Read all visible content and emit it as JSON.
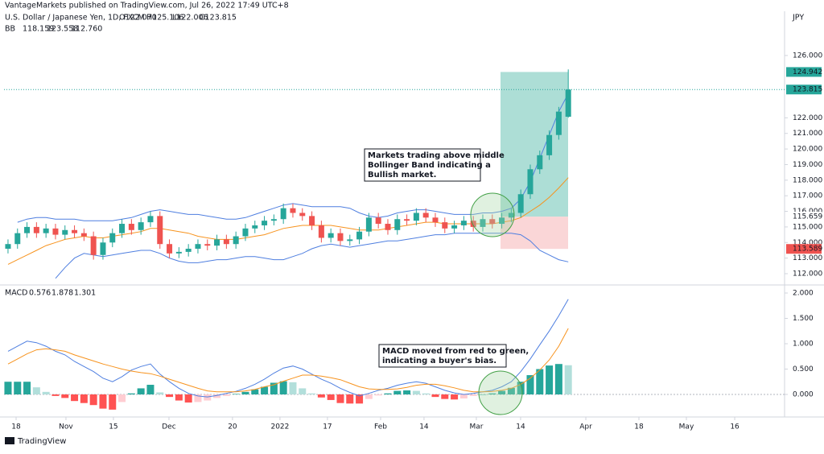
{
  "header": {
    "publisher": "VantageMarkets published on TradingView.com, Jul 26, 2022 17:49 UTC+8",
    "symbol": "U.S. Dollar / Japanese Yen, 1D, FXCM",
    "ohlc": [
      "O122.070",
      "H125.106",
      "L122.006",
      "C123.815"
    ],
    "bb_label": "BB",
    "bb_values": [
      "118.159",
      "123.558",
      "112.760"
    ],
    "macd_label": "MACD",
    "macd_values": [
      "0.576",
      "1.878",
      "1.301"
    ],
    "currency": "JPY",
    "footer": "TradingView"
  },
  "annotations": [
    {
      "lines": [
        "Markets trading above middle",
        "Bollinger Band indicating a",
        "Bullish market."
      ]
    },
    {
      "lines": [
        "MACD moved from red to green,",
        "indicating a buyer's bias."
      ]
    }
  ],
  "chart_data": [
    {
      "type": "candlestick",
      "up_color": "#26a69a",
      "down_color": "#ef5350",
      "open": [
        113.6,
        113.9,
        114.6,
        115.0,
        114.6,
        114.9,
        114.5,
        114.8,
        114.6,
        114.4,
        113.2,
        114.0,
        114.6,
        115.2,
        114.8,
        115.3,
        115.7,
        113.9,
        113.3,
        113.4,
        113.6,
        113.9,
        113.8,
        114.2,
        113.9,
        114.4,
        114.9,
        115.1,
        115.4,
        115.5,
        116.2,
        115.9,
        115.7,
        115.1,
        114.3,
        114.6,
        114.1,
        114.2,
        114.7,
        115.6,
        115.2,
        114.8,
        115.5,
        115.4,
        115.9,
        115.6,
        115.3,
        114.9,
        115.1,
        115.4,
        115.0,
        115.5,
        115.2,
        115.6,
        115.9,
        117.1,
        118.7,
        119.6,
        120.9,
        122.07
      ],
      "high": [
        114.2,
        114.9,
        115.3,
        115.3,
        115.2,
        115.2,
        115.1,
        115.1,
        114.9,
        114.7,
        114.3,
        114.9,
        115.5,
        115.5,
        115.6,
        116.0,
        116.0,
        114.2,
        113.7,
        113.9,
        114.2,
        114.2,
        114.5,
        114.5,
        114.7,
        115.2,
        115.4,
        115.7,
        115.8,
        116.5,
        116.5,
        116.2,
        116.0,
        115.4,
        114.9,
        114.9,
        114.5,
        115.0,
        115.9,
        115.9,
        115.5,
        115.8,
        115.8,
        116.2,
        116.2,
        115.9,
        115.6,
        115.4,
        115.7,
        115.7,
        115.8,
        115.8,
        115.9,
        116.2,
        117.4,
        119.0,
        119.9,
        121.2,
        122.7,
        125.106
      ],
      "low": [
        113.3,
        113.6,
        114.3,
        114.3,
        114.3,
        114.2,
        114.2,
        114.3,
        114.1,
        112.9,
        112.9,
        113.7,
        114.3,
        114.5,
        114.5,
        115.0,
        113.6,
        113.0,
        113.0,
        113.1,
        113.3,
        113.5,
        113.5,
        113.6,
        113.6,
        114.1,
        114.6,
        114.8,
        115.1,
        115.2,
        115.6,
        115.4,
        114.8,
        114.0,
        114.0,
        113.8,
        113.8,
        113.9,
        114.4,
        114.9,
        114.5,
        114.5,
        115.1,
        115.1,
        115.3,
        115.0,
        114.6,
        114.6,
        114.8,
        114.7,
        114.7,
        114.9,
        114.9,
        115.3,
        115.6,
        116.8,
        118.4,
        119.3,
        120.6,
        122.006
      ],
      "close": [
        113.9,
        114.6,
        115.0,
        114.6,
        114.9,
        114.5,
        114.8,
        114.6,
        114.4,
        113.2,
        114.0,
        114.6,
        115.2,
        114.8,
        115.3,
        115.7,
        113.9,
        113.3,
        113.4,
        113.6,
        113.9,
        113.8,
        114.2,
        113.9,
        114.4,
        114.9,
        115.1,
        115.4,
        115.5,
        116.2,
        115.9,
        115.7,
        115.1,
        114.3,
        114.6,
        114.1,
        114.2,
        114.7,
        115.6,
        115.2,
        114.8,
        115.5,
        115.4,
        115.9,
        115.6,
        115.3,
        114.9,
        115.1,
        115.4,
        115.0,
        115.5,
        115.2,
        115.6,
        115.9,
        117.1,
        118.7,
        119.6,
        120.9,
        122.4,
        123.815
      ],
      "bands": [
        {
          "color": "#f7931e",
          "values": [
            112.6,
            112.9,
            113.2,
            113.5,
            113.8,
            114.0,
            114.2,
            114.3,
            114.4,
            114.3,
            114.3,
            114.4,
            114.5,
            114.6,
            114.7,
            114.9,
            114.9,
            114.8,
            114.7,
            114.6,
            114.4,
            114.3,
            114.2,
            114.2,
            114.2,
            114.3,
            114.4,
            114.5,
            114.7,
            114.9,
            115.0,
            115.1,
            115.1,
            115.1,
            115.1,
            115.0,
            114.9,
            114.8,
            114.8,
            114.8,
            114.9,
            115.0,
            115.1,
            115.2,
            115.3,
            115.3,
            115.2,
            115.2,
            115.2,
            115.2,
            115.2,
            115.2,
            115.3,
            115.4,
            115.6,
            116.0,
            116.4,
            116.9,
            117.5,
            118.159
          ]
        },
        {
          "color": "#4f7fe0",
          "values": [
            null,
            115.3,
            115.5,
            115.6,
            115.6,
            115.5,
            115.5,
            115.5,
            115.4,
            115.4,
            115.4,
            115.4,
            115.5,
            115.6,
            115.8,
            116.0,
            116.1,
            116.0,
            115.9,
            115.8,
            115.8,
            115.7,
            115.6,
            115.5,
            115.5,
            115.6,
            115.8,
            116.0,
            116.2,
            116.4,
            116.5,
            116.4,
            116.3,
            116.3,
            116.3,
            116.3,
            116.2,
            115.9,
            115.7,
            115.6,
            115.7,
            115.9,
            116.0,
            116.1,
            116.1,
            116.0,
            115.9,
            115.8,
            115.8,
            115.8,
            115.9,
            115.9,
            116.0,
            116.2,
            116.8,
            117.9,
            119.4,
            120.9,
            122.4,
            123.558
          ]
        },
        {
          "color": "#4f7fe0",
          "values": [
            null,
            null,
            null,
            null,
            null,
            111.7,
            112.4,
            113.0,
            113.3,
            113.2,
            113.1,
            113.2,
            113.3,
            113.4,
            113.5,
            113.5,
            113.3,
            113.0,
            112.8,
            112.7,
            112.7,
            112.8,
            112.9,
            112.9,
            113.0,
            113.1,
            113.1,
            113.0,
            112.9,
            112.9,
            113.1,
            113.3,
            113.6,
            113.8,
            113.9,
            113.8,
            113.7,
            113.8,
            113.9,
            114.0,
            114.1,
            114.1,
            114.2,
            114.3,
            114.4,
            114.5,
            114.5,
            114.6,
            114.6,
            114.6,
            114.6,
            114.6,
            114.6,
            114.6,
            114.5,
            114.1,
            113.5,
            113.2,
            112.9,
            112.76
          ]
        }
      ],
      "price_tags": [
        {
          "value": 124.942,
          "label": "124.942",
          "color": "#26a69a",
          "text_color": "#ffffff"
        },
        {
          "value": 123.815,
          "label": "123.815",
          "color": "#26a69a",
          "text_color": "#ffffff"
        },
        {
          "value": 115.659,
          "label": "115.659",
          "color": "#ffffff",
          "text_color": "#131722"
        },
        {
          "value": 113.589,
          "label": "113.589",
          "color": "#ef5350",
          "text_color": "#ffffff"
        }
      ],
      "target_color": "#9fd8cf",
      "stop_color": "#f9cfd0",
      "xlim": [
        -0.42,
        81.78
      ],
      "ylim": [
        111.38,
        128.63
      ],
      "yticks": [
        {
          "value": 112,
          "label": "112.000"
        },
        {
          "value": 113,
          "label": "113.000"
        },
        {
          "value": 114,
          "label": "114.000"
        },
        {
          "value": 115,
          "label": "115.000"
        },
        {
          "value": 116,
          "label": "116.000"
        },
        {
          "value": 117,
          "label": "117.000"
        },
        {
          "value": 118,
          "label": "118.000"
        },
        {
          "value": 119,
          "label": "119.000"
        },
        {
          "value": 120,
          "label": "120.000"
        },
        {
          "value": 121,
          "label": "121.000"
        },
        {
          "value": 122,
          "label": "122.000"
        },
        {
          "value": 126,
          "label": "126.000"
        }
      ]
    },
    {
      "type": "macd",
      "histogram_colors": [
        "#26a69a",
        "#b2dfdb",
        "#ff5252",
        "#ffcdd2"
      ],
      "histogram": [
        0.25,
        0.25,
        0.25,
        0.14,
        0.05,
        -0.03,
        -0.07,
        -0.13,
        -0.17,
        -0.21,
        -0.28,
        -0.3,
        -0.15,
        0.02,
        0.12,
        0.19,
        0.04,
        -0.05,
        -0.12,
        -0.16,
        -0.15,
        -0.12,
        -0.07,
        -0.03,
        0.01,
        0.05,
        0.1,
        0.15,
        0.23,
        0.26,
        0.24,
        0.12,
        0.02,
        -0.06,
        -0.11,
        -0.17,
        -0.18,
        -0.18,
        -0.09,
        -0.02,
        0.02,
        0.07,
        0.08,
        0.07,
        0.02,
        -0.05,
        -0.09,
        -0.1,
        -0.08,
        -0.03,
        0.0,
        0.02,
        0.07,
        0.13,
        0.25,
        0.38,
        0.5,
        0.57,
        0.6,
        0.576
      ],
      "series": [
        {
          "color": "#4f7fe0",
          "values": [
            0.85,
            0.95,
            1.05,
            1.02,
            0.95,
            0.85,
            0.78,
            0.65,
            0.55,
            0.45,
            0.32,
            0.25,
            0.35,
            0.48,
            0.55,
            0.6,
            0.4,
            0.25,
            0.12,
            0.02,
            -0.03,
            -0.05,
            -0.02,
            0.02,
            0.06,
            0.12,
            0.2,
            0.3,
            0.42,
            0.52,
            0.56,
            0.5,
            0.4,
            0.3,
            0.22,
            0.12,
            0.04,
            -0.03,
            0.02,
            0.08,
            0.12,
            0.18,
            0.22,
            0.25,
            0.22,
            0.15,
            0.08,
            0.03,
            0.0,
            0.02,
            0.05,
            0.08,
            0.15,
            0.25,
            0.45,
            0.7,
            0.98,
            1.25,
            1.55,
            1.878
          ]
        },
        {
          "color": "#f7931e",
          "values": [
            0.6,
            0.7,
            0.8,
            0.88,
            0.9,
            0.88,
            0.85,
            0.78,
            0.72,
            0.66,
            0.6,
            0.55,
            0.5,
            0.46,
            0.43,
            0.41,
            0.36,
            0.3,
            0.24,
            0.18,
            0.12,
            0.07,
            0.05,
            0.05,
            0.05,
            0.07,
            0.1,
            0.15,
            0.19,
            0.26,
            0.32,
            0.38,
            0.38,
            0.36,
            0.33,
            0.29,
            0.22,
            0.15,
            0.11,
            0.1,
            0.1,
            0.11,
            0.14,
            0.18,
            0.2,
            0.2,
            0.17,
            0.13,
            0.08,
            0.05,
            0.05,
            0.06,
            0.08,
            0.12,
            0.2,
            0.32,
            0.48,
            0.68,
            0.95,
            1.301
          ]
        }
      ],
      "xlim": [
        -0.42,
        81.78
      ],
      "ylim": [
        -0.413,
        2.127
      ],
      "yticks": [
        {
          "value": 0,
          "label": "0.000"
        },
        {
          "value": 0.5,
          "label": "0.500"
        },
        {
          "value": 1,
          "label": "1.000"
        },
        {
          "value": 1.5,
          "label": "1.500"
        },
        {
          "value": 2,
          "label": "2.000"
        }
      ],
      "xticks": [
        {
          "value": 0.85,
          "label": "18"
        },
        {
          "value": 6.1,
          "label": "Nov"
        },
        {
          "value": 11.1,
          "label": "15"
        },
        {
          "value": 16.95,
          "label": "Dec"
        },
        {
          "value": 23.64,
          "label": "20"
        },
        {
          "value": 28.64,
          "label": "2022"
        },
        {
          "value": 33.64,
          "label": "17"
        },
        {
          "value": 39.24,
          "label": "Feb"
        },
        {
          "value": 43.81,
          "label": "14"
        },
        {
          "value": 49.32,
          "label": "Mar"
        },
        {
          "value": 53.98,
          "label": "14"
        },
        {
          "value": 60.85,
          "label": "Apr"
        },
        {
          "value": 66.44,
          "label": "18"
        },
        {
          "value": 71.44,
          "label": "May"
        },
        {
          "value": 76.53,
          "label": "16"
        }
      ]
    }
  ]
}
